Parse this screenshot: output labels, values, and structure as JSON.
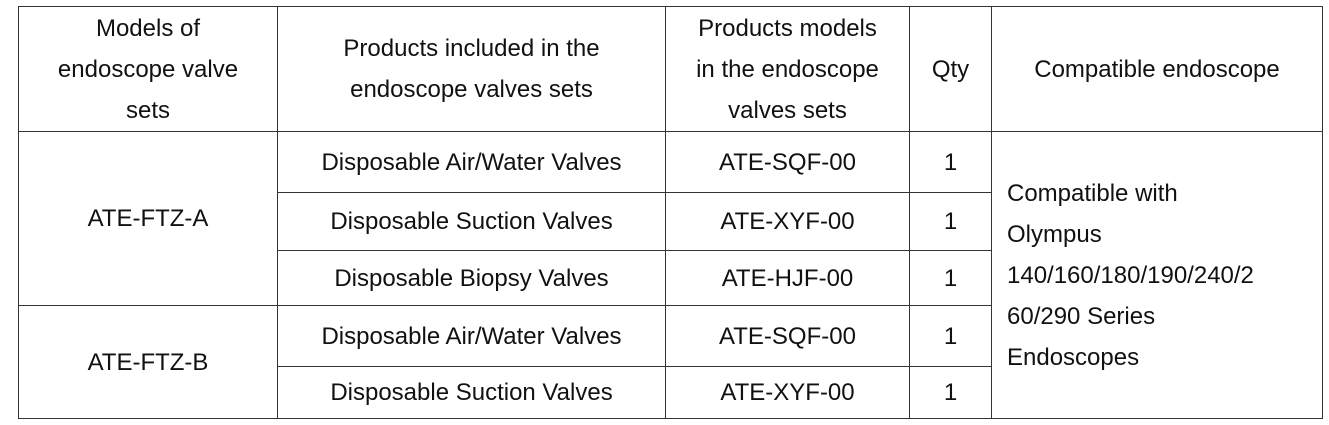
{
  "table": {
    "header": [
      [
        "Models of",
        "endoscope valve",
        "sets"
      ],
      [
        "Products included in the",
        "endoscope valves sets"
      ],
      [
        "Products models",
        "in the endoscope",
        "valves sets"
      ],
      [
        "Qty"
      ],
      [
        "Compatible endoscope"
      ]
    ],
    "groups": [
      {
        "model": "ATE-FTZ-A",
        "items": [
          {
            "product": "Disposable Air/Water Valves",
            "code": "ATE-SQF-00",
            "qty": 1
          },
          {
            "product": "Disposable Suction Valves",
            "code": "ATE-XYF-00",
            "qty": 1
          },
          {
            "product": "Disposable Biopsy Valves",
            "code": "ATE-HJF-00",
            "qty": 1
          }
        ]
      },
      {
        "model": "ATE-FTZ-B",
        "items": [
          {
            "product": "Disposable Air/Water Valves",
            "code": "ATE-SQF-00",
            "qty": 1
          },
          {
            "product": "Disposable Suction Valves",
            "code": "ATE-XYF-00",
            "qty": 1
          }
        ]
      }
    ],
    "compatible": [
      "Compatible with",
      "Olympus",
      "140/160/180/190/240/2",
      "60/290 Series",
      "Endoscopes"
    ]
  }
}
